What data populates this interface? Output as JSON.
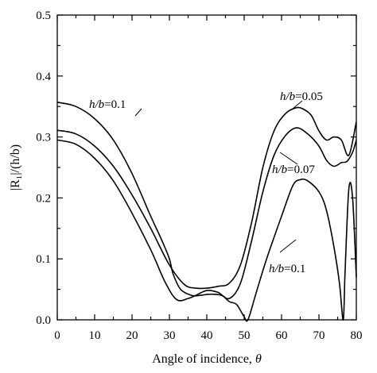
{
  "chart_data": {
    "type": "line",
    "title": "",
    "xlabel": "Angle of incidence, ",
    "xlabel_symbol": "θ",
    "ylabel": "|R₁|/(h/b)",
    "xlim": [
      0,
      80
    ],
    "ylim": [
      0,
      0.5
    ],
    "xticks": [
      0,
      10,
      20,
      30,
      40,
      50,
      60,
      70,
      80
    ],
    "yticks": [
      0.0,
      0.1,
      0.2,
      0.3,
      0.4,
      0.5
    ],
    "ytick_labels": [
      "0.0",
      "0.1",
      "0.2",
      "0.3",
      "0.4",
      "0.5"
    ],
    "grid": false,
    "legend": "none",
    "series": [
      {
        "name": "h/b=0.05",
        "x": [
          0,
          5,
          10,
          15,
          20,
          25,
          30,
          34,
          37,
          40,
          43,
          46,
          49,
          52,
          55,
          58,
          61,
          64,
          66,
          68,
          70,
          72,
          74,
          76,
          78,
          80
        ],
        "y": [
          0.311,
          0.305,
          0.285,
          0.252,
          0.205,
          0.15,
          0.09,
          0.058,
          0.052,
          0.052,
          0.055,
          0.06,
          0.09,
          0.16,
          0.25,
          0.31,
          0.338,
          0.348,
          0.345,
          0.335,
          0.31,
          0.295,
          0.3,
          0.295,
          0.27,
          0.325
        ]
      },
      {
        "name": "h/b=0.07",
        "x": [
          0,
          5,
          10,
          15,
          20,
          25,
          29,
          32,
          35,
          37,
          40,
          43,
          46,
          49,
          52,
          55,
          58,
          61,
          64,
          67,
          70,
          72,
          74,
          76,
          77.5,
          79,
          80
        ],
        "y": [
          0.295,
          0.288,
          0.265,
          0.228,
          0.175,
          0.115,
          0.06,
          0.033,
          0.035,
          0.04,
          0.048,
          0.045,
          0.035,
          0.06,
          0.13,
          0.21,
          0.27,
          0.302,
          0.315,
          0.305,
          0.285,
          0.262,
          0.252,
          0.258,
          0.26,
          0.275,
          0.295
        ]
      },
      {
        "name": "h/b=0.1",
        "x": [
          0,
          5,
          10,
          15,
          20,
          25,
          28,
          30,
          31,
          33,
          36,
          38,
          41,
          44,
          46,
          48,
          50,
          51,
          53,
          56,
          60,
          63,
          65,
          67,
          70,
          72,
          74,
          75.5,
          76.5,
          77,
          78,
          79,
          80
        ],
        "y": [
          0.357,
          0.35,
          0.33,
          0.295,
          0.24,
          0.17,
          0.13,
          0.1,
          0.075,
          0.05,
          0.04,
          0.04,
          0.042,
          0.04,
          0.03,
          0.025,
          0.005,
          0.0,
          0.04,
          0.1,
          0.17,
          0.22,
          0.23,
          0.228,
          0.21,
          0.18,
          0.12,
          0.06,
          0.0,
          0.08,
          0.215,
          0.2,
          0.07
        ]
      }
    ],
    "annotations": [
      {
        "italic": "h/b",
        "rest": "=0.1"
      },
      {
        "italic": "h/b",
        "rest": "=0.05"
      },
      {
        "italic": "h/b",
        "rest": "=0.07"
      },
      {
        "italic": "h/b",
        "rest": "=0.1"
      }
    ]
  }
}
